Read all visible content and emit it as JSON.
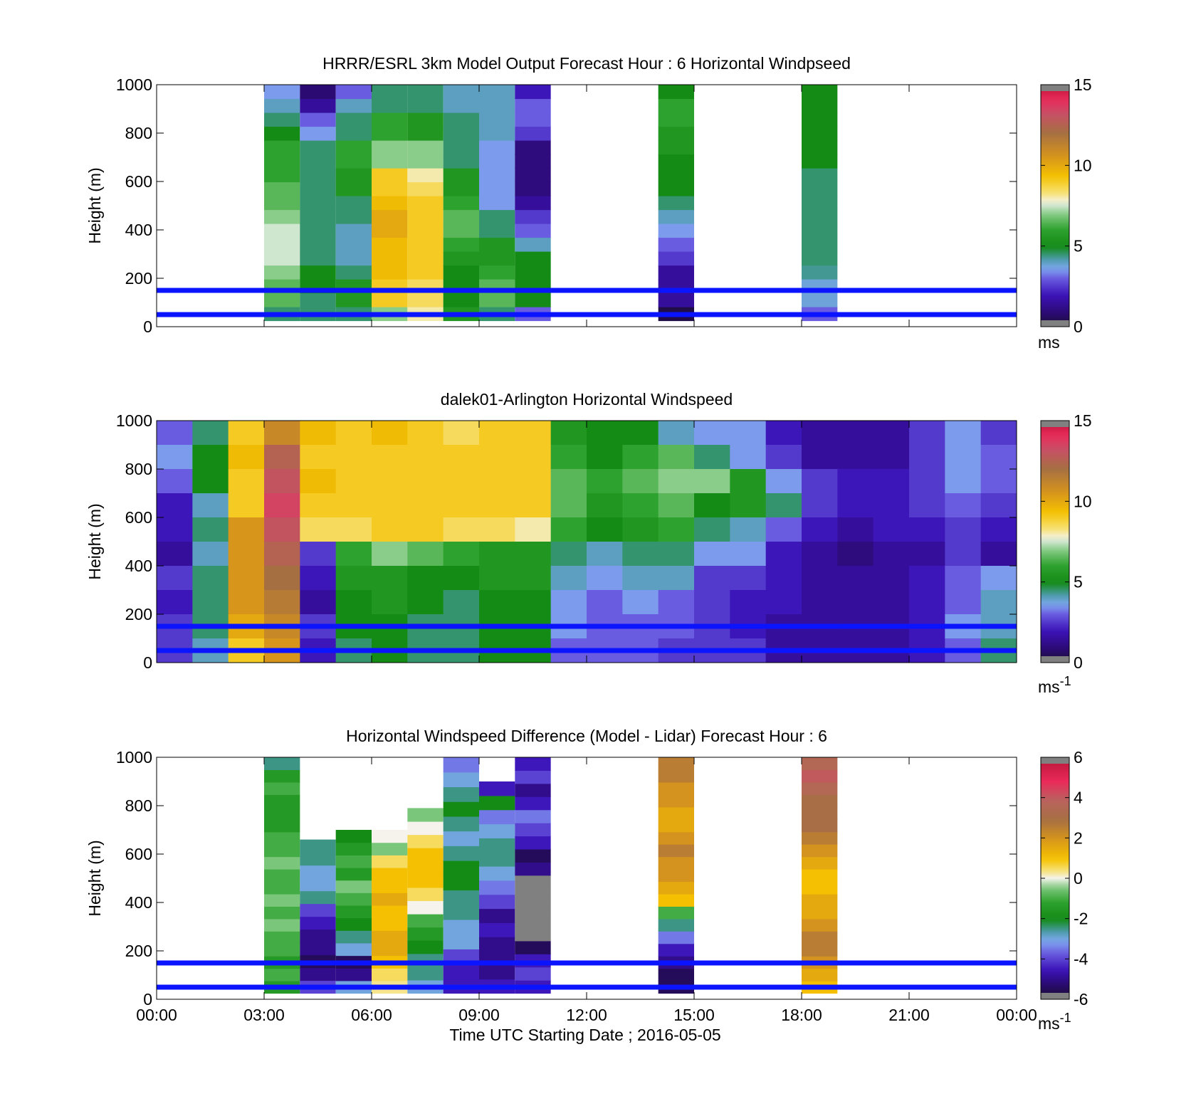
{
  "figure": {
    "xlabel": "Time UTC  Starting Date ; 2016-05-05",
    "x_tick_labels": [
      "00:00",
      "03:00",
      "06:00",
      "09:00",
      "12:00",
      "15:00",
      "18:00",
      "21:00",
      "00:00"
    ],
    "y_tick_labels": [
      "0",
      "200",
      "400",
      "600",
      "800",
      "1000"
    ]
  },
  "chart_data": [
    {
      "type": "heatmap",
      "title": "HRRR/ESRL 3km Model Output   Forecast Hour : 6 Horizontal Windpseed",
      "ylabel": "Height (m)",
      "xlabel": "",
      "xlim": [
        0,
        24
      ],
      "ylim": [
        0,
        1000
      ],
      "colorbar": {
        "range": [
          0,
          15
        ],
        "ticks": [
          0,
          5,
          10,
          15
        ],
        "unit": "ms",
        "unit_sup": ""
      },
      "palette": "speed",
      "reference_lines_m": [
        50,
        150
      ],
      "columns": [
        {
          "x0": 3.0,
          "x1": 4.0,
          "y0": 25,
          "values": [
            4.5,
            6.5,
            6.5,
            7.0,
            7.5,
            7.5,
            7.5,
            7.0,
            6.5,
            6.5,
            6.0,
            6.0,
            6.0,
            5.0,
            4.5,
            4.0,
            3.5
          ]
        },
        {
          "x0": 4.0,
          "x1": 5.0,
          "y0": 25,
          "values": [
            4.5,
            4.5,
            5.0,
            5.0,
            4.5,
            4.5,
            4.5,
            4.5,
            4.5,
            4.5,
            4.5,
            4.5,
            4.5,
            3.5,
            3.0,
            1.5,
            0.8
          ]
        },
        {
          "x0": 5.0,
          "x1": 6.0,
          "y0": 25,
          "values": [
            4.5,
            5.5,
            5.5,
            4.5,
            4.0,
            4.0,
            4.0,
            4.5,
            4.5,
            5.5,
            5.5,
            6.0,
            6.0,
            4.5,
            4.5,
            4.0,
            3.0
          ]
        },
        {
          "x0": 6.0,
          "x1": 7.0,
          "y0": 25,
          "values": [
            7.0,
            9.0,
            9.0,
            9.5,
            9.5,
            9.5,
            10.0,
            10.0,
            9.5,
            9.0,
            9.0,
            7.0,
            7.0,
            6.0,
            6.0,
            4.5,
            4.5
          ]
        },
        {
          "x0": 7.0,
          "x1": 8.0,
          "y0": 25,
          "values": [
            8.0,
            8.5,
            8.5,
            9.0,
            9.0,
            9.0,
            9.0,
            9.0,
            9.0,
            8.5,
            8.0,
            7.0,
            7.0,
            5.5,
            5.5,
            4.5,
            4.5
          ]
        },
        {
          "x0": 8.0,
          "x1": 9.0,
          "y0": 25,
          "values": [
            5.5,
            5.0,
            5.0,
            5.0,
            5.5,
            6.0,
            6.5,
            6.5,
            6.0,
            5.5,
            5.5,
            4.5,
            4.5,
            4.5,
            4.5,
            4.0,
            4.0
          ]
        },
        {
          "x0": 9.0,
          "x1": 10.0,
          "y0": 25,
          "values": [
            4.5,
            6.5,
            6.5,
            6.0,
            5.5,
            5.5,
            4.5,
            4.5,
            3.5,
            3.5,
            3.5,
            3.5,
            3.5,
            4.0,
            4.0,
            4.0,
            4.0
          ]
        },
        {
          "x0": 10.0,
          "x1": 11.0,
          "y0": 25,
          "values": [
            3.0,
            5.0,
            5.0,
            5.0,
            5.0,
            4.0,
            3.0,
            2.5,
            1.5,
            1.0,
            1.0,
            1.0,
            1.0,
            2.5,
            3.0,
            3.0,
            2.0
          ]
        },
        {
          "x0": 14.0,
          "x1": 15.0,
          "y0": 25,
          "values": [
            0.3,
            1.5,
            1.5,
            1.5,
            2.5,
            3.0,
            3.5,
            4.0,
            4.5,
            5.0,
            5.0,
            5.0,
            5.5,
            5.5,
            6.0,
            6.0,
            5.0
          ]
        },
        {
          "x0": 18.0,
          "x1": 19.0,
          "y0": 25,
          "values": [
            3.0,
            3.8,
            3.8,
            4.3,
            4.5,
            4.5,
            4.5,
            4.5,
            4.5,
            4.5,
            4.5,
            5.0,
            5.0,
            5.0,
            5.0,
            5.0,
            5.0
          ]
        }
      ]
    },
    {
      "type": "heatmap",
      "title": "dalek01-Arlington  Horizontal Windspeed",
      "ylabel": "Height (m)",
      "xlabel": "",
      "xlim": [
        0,
        24
      ],
      "ylim": [
        0,
        1000
      ],
      "colorbar": {
        "range": [
          0,
          15
        ],
        "ticks": [
          0,
          5,
          10,
          15
        ],
        "unit": "ms",
        "unit_sup": "-1"
      },
      "palette": "speed",
      "reference_lines_m": [
        50,
        150
      ],
      "grid": {
        "x0": 0.0,
        "x1": 24.0,
        "y0": 0,
        "y1": 1000,
        "ncols": 24,
        "nrows": 10
      },
      "values": [
        [
          3.0,
          4.5,
          9.0,
          11.0,
          9.5,
          9.0,
          9.5,
          9.0,
          8.5,
          9.0,
          9.0,
          5.5,
          5.0,
          5.0,
          4.0,
          3.5,
          3.5,
          2.0,
          1.5,
          1.5,
          1.5,
          2.5,
          3.5,
          2.5
        ],
        [
          3.5,
          5.0,
          9.5,
          12.5,
          9.0,
          9.0,
          9.0,
          9.0,
          9.0,
          9.0,
          9.0,
          6.0,
          5.0,
          6.0,
          6.5,
          4.5,
          3.5,
          2.5,
          1.5,
          1.5,
          1.5,
          2.5,
          3.5,
          3.0
        ],
        [
          3.0,
          5.0,
          9.0,
          13.0,
          9.5,
          9.0,
          9.0,
          9.0,
          9.0,
          9.0,
          9.0,
          6.5,
          6.0,
          6.5,
          7.0,
          7.0,
          5.5,
          3.5,
          2.5,
          2.0,
          2.0,
          2.5,
          3.5,
          3.0
        ],
        [
          2.0,
          4.0,
          9.0,
          13.5,
          9.0,
          9.0,
          9.0,
          9.0,
          9.0,
          9.0,
          9.0,
          6.5,
          5.5,
          6.0,
          6.5,
          5.0,
          5.5,
          4.5,
          2.5,
          2.0,
          2.0,
          2.5,
          3.0,
          2.5
        ],
        [
          2.0,
          4.5,
          10.5,
          13.0,
          8.5,
          8.5,
          9.0,
          9.0,
          8.5,
          8.5,
          8.0,
          6.0,
          5.0,
          5.5,
          6.0,
          4.5,
          4.0,
          3.0,
          2.0,
          1.5,
          2.0,
          2.0,
          2.5,
          2.0
        ],
        [
          1.5,
          4.0,
          10.5,
          12.5,
          2.5,
          6.0,
          7.0,
          6.5,
          6.0,
          5.5,
          5.5,
          4.5,
          4.0,
          4.5,
          4.5,
          3.5,
          3.5,
          2.0,
          1.5,
          1.0,
          1.5,
          1.5,
          2.5,
          1.5
        ],
        [
          2.5,
          4.5,
          10.5,
          12.0,
          2.0,
          5.5,
          5.5,
          5.0,
          5.0,
          5.5,
          5.5,
          4.0,
          3.5,
          4.0,
          4.0,
          2.5,
          2.5,
          2.0,
          1.5,
          1.5,
          1.5,
          2.0,
          3.0,
          3.5
        ],
        [
          2.0,
          4.5,
          10.5,
          11.5,
          1.5,
          5.0,
          5.5,
          5.0,
          4.5,
          5.0,
          5.0,
          3.5,
          3.0,
          3.5,
          3.0,
          2.5,
          2.0,
          2.0,
          1.5,
          1.5,
          1.5,
          2.0,
          3.0,
          4.0
        ],
        [
          2.5,
          4.5,
          10.0,
          11.0,
          2.5,
          5.0,
          5.0,
          4.5,
          4.5,
          5.0,
          5.0,
          3.5,
          3.0,
          3.0,
          3.0,
          2.5,
          2.0,
          1.5,
          1.5,
          1.5,
          1.5,
          2.0,
          3.5,
          4.0
        ],
        [
          2.5,
          4.0,
          9.0,
          10.5,
          2.0,
          4.5,
          5.0,
          4.5,
          4.5,
          5.0,
          5.0,
          3.0,
          3.0,
          3.0,
          2.5,
          2.5,
          2.5,
          1.5,
          1.5,
          1.5,
          1.5,
          2.0,
          3.0,
          4.5
        ]
      ]
    },
    {
      "type": "heatmap",
      "title": "Horizontal Windspeed Difference (Model - Lidar) Forecast Hour : 6",
      "ylabel": "Height (m)",
      "xlabel": "Time UTC  Starting Date ; 2016-05-05",
      "xlim": [
        0,
        24
      ],
      "ylim": [
        0,
        1000
      ],
      "colorbar": {
        "range": [
          -6,
          6
        ],
        "ticks": [
          -6,
          -4,
          -2,
          0,
          2,
          4,
          6
        ],
        "unit": "ms",
        "unit_sup": "-1"
      },
      "palette": "diff",
      "reference_lines_m": [
        50,
        150
      ],
      "columns": [
        {
          "x0": 3.0,
          "x1": 4.0,
          "y0": 25,
          "y1": 1000,
          "values": [
            -1.5,
            -1.0,
            -1.5,
            -1.0,
            -1.0,
            -0.5,
            -1.0,
            -0.5,
            -1.0,
            -1.0,
            -0.5,
            -1.0,
            -1.0,
            -1.5,
            -1.5,
            -1.5,
            -1.0,
            -1.5,
            -2.5
          ]
        },
        {
          "x0": 4.0,
          "x1": 5.0,
          "y0": 25,
          "y1": 660,
          "values": [
            -4.0,
            -5.0,
            -5.5,
            -5.0,
            -5.0,
            -4.5,
            -4.0,
            -2.5,
            -3.0,
            -3.0,
            -2.5,
            -2.5
          ]
        },
        {
          "x0": 5.0,
          "x1": 6.0,
          "y0": 25,
          "y1": 700,
          "values": [
            -3.0,
            -5.0,
            -5.5,
            -3.0,
            -2.5,
            -2.0,
            -1.5,
            -1.0,
            -0.5,
            -1.5,
            -1.0,
            -1.5,
            -2.0
          ]
        },
        {
          "x0": 6.0,
          "x1": 7.0,
          "y0": 25,
          "y1": 700,
          "values": [
            0.3,
            0.5,
            1.0,
            1.5,
            1.5,
            1.0,
            1.0,
            1.5,
            1.0,
            1.0,
            0.5,
            -0.5,
            0.0
          ]
        },
        {
          "x0": 7.0,
          "x1": 8.0,
          "y0": 25,
          "y1": 790,
          "values": [
            -3.0,
            -2.5,
            -2.5,
            -2.0,
            -1.5,
            -1.0,
            0.0,
            0.5,
            1.0,
            1.0,
            1.0,
            0.5,
            0.0,
            -0.5
          ]
        },
        {
          "x0": 8.0,
          "x1": 9.0,
          "y0": 25,
          "y1": 1000,
          "values": [
            -4.5,
            -4.5,
            -4.0,
            -3.0,
            -3.0,
            -2.5,
            -2.5,
            -2.0,
            -2.0,
            -2.5,
            -3.0,
            -2.5,
            -2.0,
            -2.5,
            -3.0,
            -3.5
          ]
        },
        {
          "x0": 9.0,
          "x1": 10.0,
          "y0": 25,
          "y1": 900,
          "values": [
            -4.5,
            -5.0,
            -5.0,
            -5.0,
            -4.5,
            -5.0,
            -4.0,
            -3.5,
            -3.0,
            -2.5,
            -2.5,
            -3.0,
            -3.5,
            -2.0,
            -4.5
          ]
        },
        {
          "x0": 10.0,
          "x1": 11.0,
          "y0": 25,
          "y1": 1000,
          "values": [
            -4.5,
            -4.0,
            -4.5,
            -5.5,
            -8.0,
            -8.0,
            -8.0,
            -8.0,
            -8.0,
            -5.0,
            -5.5,
            -4.5,
            -4.0,
            -3.5,
            -4.5,
            -5.0,
            -4.0,
            -4.5
          ]
        },
        {
          "x0": 14.0,
          "x1": 15.0,
          "y0": 25,
          "y1": 1000,
          "values": [
            -5.5,
            -5.5,
            -5.0,
            -4.5,
            -3.5,
            -2.5,
            -1.0,
            1.0,
            1.5,
            2.0,
            2.0,
            2.5,
            2.0,
            1.5,
            1.5,
            2.0,
            2.0,
            2.5,
            2.5
          ]
        },
        {
          "x0": 18.0,
          "x1": 19.0,
          "y0": 25,
          "y1": 1000,
          "values": [
            1.0,
            1.5,
            2.0,
            2.5,
            2.5,
            2.0,
            1.5,
            1.5,
            1.0,
            1.0,
            1.5,
            2.0,
            2.5,
            3.0,
            3.0,
            3.0,
            3.5,
            4.0,
            3.5
          ]
        }
      ]
    }
  ]
}
